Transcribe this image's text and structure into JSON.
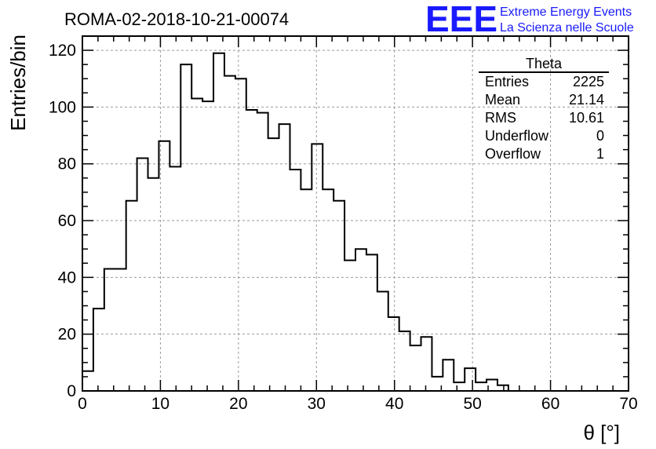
{
  "title": "ROMA-02-2018-10-21-00074",
  "logo": {
    "mark": "EEE",
    "line1": "Extreme Energy Events",
    "line2": "La Scienza nelle Scuole",
    "color": "#1a1aff"
  },
  "stats": {
    "name": "Theta",
    "rows": [
      {
        "label": "Entries",
        "value": "2225"
      },
      {
        "label": "Mean",
        "value": "21.14"
      },
      {
        "label": "RMS",
        "value": "10.61"
      },
      {
        "label": "Underflow",
        "value": "0"
      },
      {
        "label": "Overflow",
        "value": "1"
      }
    ]
  },
  "chart_data": {
    "type": "histogram",
    "title": "ROMA-02-2018-10-21-00074",
    "xlabel": "θ [°]",
    "ylabel": "Entries/bin",
    "xlim": [
      0,
      70
    ],
    "ylim": [
      0,
      125
    ],
    "bin_width": 1.4,
    "bin_start": 0,
    "counts": [
      7,
      29,
      43,
      43,
      67,
      82,
      75,
      88,
      79,
      115,
      103,
      102,
      119,
      111,
      110,
      99,
      98,
      89,
      94,
      78,
      71,
      87,
      71,
      67,
      46,
      50,
      48,
      35,
      26,
      21,
      16,
      19,
      5,
      11,
      3,
      8,
      3,
      4,
      2,
      0
    ],
    "x_ticks": [
      0,
      10,
      20,
      30,
      40,
      50,
      60,
      70
    ],
    "y_ticks": [
      0,
      20,
      40,
      60,
      80,
      100,
      120
    ],
    "grid": true,
    "line_color": "#000000"
  }
}
